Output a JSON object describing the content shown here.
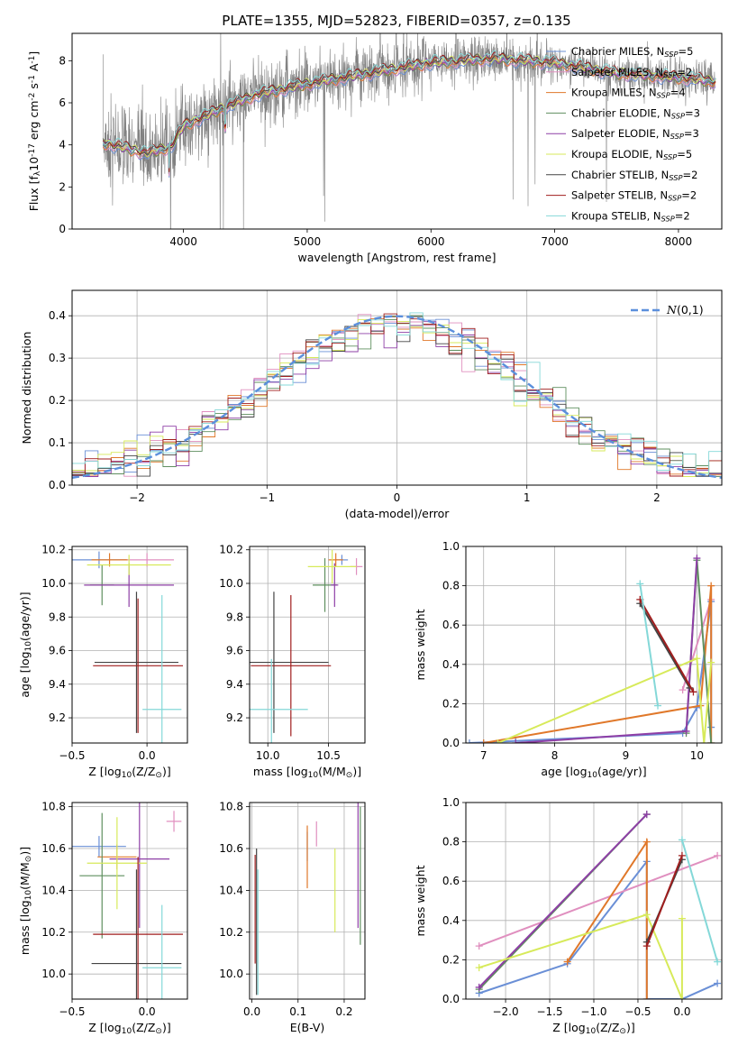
{
  "colors": {
    "Chabrier MILES": "#6a8fd6",
    "Salpeter MILES": "#e08fbf",
    "Kroupa MILES": "#e0782a",
    "Chabrier ELODIE": "#5f8f5f",
    "Salpeter ELODIE": "#8e3fa6",
    "Kroupa ELODIE": "#d7ea5a",
    "Chabrier STELIB": "#444444",
    "Salpeter STELIB": "#a01e1e",
    "Kroupa STELIB": "#84d8d8",
    "data": "#808080",
    "normal": "#5b8fdc"
  },
  "chart_data": [
    {
      "id": "spectrum",
      "type": "line",
      "title": "PLATE=1355, MJD=52823, FIBERID=0357, z=0.135",
      "xlabel": "wavelength [Angstrom, rest frame]",
      "ylabel": "Flux [f$_\\lambda$10$^{-17}$ erg cm$^{-2}$ s$^{-1}$ A$^{-1}$]",
      "xlim": [
        3100,
        8350
      ],
      "ylim": [
        0,
        9.3
      ],
      "xticks": [
        4000,
        5000,
        6000,
        7000,
        8000
      ],
      "yticks": [
        0,
        2,
        4,
        6,
        8
      ],
      "continuum": [
        [
          3350,
          4.1
        ],
        [
          3500,
          3.9
        ],
        [
          3700,
          3.6
        ],
        [
          3900,
          3.9
        ],
        [
          4000,
          4.9
        ],
        [
          4300,
          5.7
        ],
        [
          4600,
          6.4
        ],
        [
          5000,
          6.9
        ],
        [
          5500,
          7.4
        ],
        [
          6000,
          7.9
        ],
        [
          6500,
          8.1
        ],
        [
          7000,
          7.9
        ],
        [
          7500,
          7.4
        ],
        [
          8000,
          7.2
        ],
        [
          8300,
          7.0
        ]
      ],
      "legend": [
        {
          "label": "Chabrier MILES, N$_{SSP}$=5"
        },
        {
          "label": "Salpeter MILES, N$_{SSP}$=2"
        },
        {
          "label": "Kroupa MILES, N$_{SSP}$=4"
        },
        {
          "label": "Chabrier ELODIE, N$_{SSP}$=3"
        },
        {
          "label": "Salpeter ELODIE, N$_{SSP}$=3"
        },
        {
          "label": "Kroupa ELODIE, N$_{SSP}$=5"
        },
        {
          "label": "Chabrier STELIB, N$_{SSP}$=2"
        },
        {
          "label": "Salpeter STELIB, N$_{SSP}$=2"
        },
        {
          "label": "Kroupa STELIB, N$_{SSP}$=2"
        }
      ],
      "legend_position": "right"
    },
    {
      "id": "residuals",
      "type": "histogram",
      "xlabel": "(data-model)/error",
      "ylabel": "Normed distribution",
      "xlim": [
        -2.5,
        2.5
      ],
      "ylim": [
        0,
        0.46
      ],
      "xticks": [
        -2,
        -1,
        0,
        1,
        2
      ],
      "yticks": [
        0.0,
        0.1,
        0.2,
        0.3,
        0.4
      ],
      "curve_label": "$\\mathcal{N}(0,1)$",
      "legend_position": "top-right",
      "grid": true
    },
    {
      "id": "age_Z",
      "type": "errorbar",
      "xlabel": "Z [log$_{10}$(Z/Z$_\\odot$)]",
      "ylabel": "age  [log$_{10}$(age/yr)]",
      "xlim": [
        -0.5,
        0.27
      ],
      "ylim": [
        9.05,
        10.22
      ],
      "xticks": [
        -0.5,
        0.0
      ],
      "yticks": [
        9.2,
        9.4,
        9.6,
        9.8,
        10.0,
        10.2
      ],
      "points": [
        {
          "s": "Chabrier MILES",
          "x": -0.32,
          "y": 10.14,
          "xe": 0.18,
          "ye": 0.05
        },
        {
          "s": "Salpeter MILES",
          "x": 0.0,
          "y": 10.14,
          "xe": 0.18,
          "ye": 0.04
        },
        {
          "s": "Kroupa MILES",
          "x": -0.25,
          "y": 10.14,
          "xe": 0.12,
          "ye": 0.04
        },
        {
          "s": "Chabrier ELODIE",
          "x": -0.3,
          "y": 9.99,
          "xe": 0.08,
          "ye": 0.12
        },
        {
          "s": "Salpeter ELODIE",
          "x": -0.12,
          "y": 9.99,
          "xe": 0.3,
          "ye": 0.13
        },
        {
          "s": "Kroupa ELODIE",
          "x": -0.12,
          "y": 10.11,
          "xe": 0.28,
          "ye": 0.06
        },
        {
          "s": "Chabrier STELIB",
          "x": -0.07,
          "y": 9.53,
          "xe": 0.28,
          "ye": 0.42
        },
        {
          "s": "Salpeter STELIB",
          "x": -0.06,
          "y": 9.51,
          "xe": 0.3,
          "ye": 0.4
        },
        {
          "s": "Kroupa STELIB",
          "x": 0.1,
          "y": 9.25,
          "xe": 0.13,
          "ye": 0.68
        }
      ]
    },
    {
      "id": "age_mass",
      "type": "errorbar",
      "xlabel": "mass [log$_{10}$(M/M$_\\odot$)]",
      "xlim": [
        9.85,
        10.8
      ],
      "ylim": [
        9.05,
        10.22
      ],
      "xticks": [
        10.0,
        10.5
      ],
      "yticks": [
        9.2,
        9.4,
        9.6,
        9.8,
        10.0,
        10.2
      ],
      "points": [
        {
          "s": "Chabrier MILES",
          "x": 10.61,
          "y": 10.14,
          "xe": 0.05,
          "ye": 0.03
        },
        {
          "s": "Salpeter MILES",
          "x": 10.73,
          "y": 10.1,
          "xe": 0.05,
          "ye": 0.05
        },
        {
          "s": "Kroupa MILES",
          "x": 10.56,
          "y": 10.14,
          "xe": 0.06,
          "ye": 0.04
        },
        {
          "s": "Chabrier ELODIE",
          "x": 10.47,
          "y": 9.99,
          "xe": 0.1,
          "ye": 0.16
        },
        {
          "s": "Salpeter ELODIE",
          "x": 10.55,
          "y": 9.99,
          "xe": 0.03,
          "ye": 0.13
        },
        {
          "s": "Kroupa ELODIE",
          "x": 10.53,
          "y": 10.1,
          "xe": 0.2,
          "ye": 0.1
        },
        {
          "s": "Chabrier STELIB",
          "x": 10.05,
          "y": 9.53,
          "xe": 0.45,
          "ye": 0.42
        },
        {
          "s": "Salpeter STELIB",
          "x": 10.19,
          "y": 9.51,
          "xe": 0.33,
          "ye": 0.42
        },
        {
          "s": "Kroupa STELIB",
          "x": 10.03,
          "y": 9.25,
          "xe": 0.3,
          "ye": 0.3
        }
      ]
    },
    {
      "id": "weight_age",
      "type": "line",
      "xlabel": "age  [log$_{10}$(age/yr)]",
      "ylabel": "mass weight",
      "xlim": [
        6.75,
        10.35
      ],
      "ylim": [
        0.0,
        1.0
      ],
      "xticks": [
        7,
        8,
        9,
        10
      ],
      "yticks": [
        0.0,
        0.2,
        0.4,
        0.6,
        0.8,
        1.0
      ],
      "series": [
        {
          "s": "Chabrier MILES",
          "pts": [
            [
              6.8,
              0.0
            ],
            [
              7.45,
              0.01
            ],
            [
              9.8,
              0.05
            ],
            [
              10.0,
              0.18
            ],
            [
              10.2,
              0.72
            ],
            [
              10.2,
              0.08
            ]
          ]
        },
        {
          "s": "Salpeter MILES",
          "pts": [
            [
              9.8,
              0.27
            ],
            [
              10.2,
              0.73
            ]
          ]
        },
        {
          "s": "Kroupa MILES",
          "pts": [
            [
              7.0,
              0.0
            ],
            [
              10.05,
              0.19
            ],
            [
              10.2,
              0.8
            ],
            [
              10.2,
              0.0
            ]
          ]
        },
        {
          "s": "Chabrier ELODIE",
          "pts": [
            [
              9.85,
              0.05
            ],
            [
              10.0,
              0.93
            ],
            [
              10.2,
              0.0
            ]
          ]
        },
        {
          "s": "Salpeter ELODIE",
          "pts": [
            [
              7.45,
              0.0
            ],
            [
              9.85,
              0.06
            ],
            [
              10.0,
              0.94
            ]
          ]
        },
        {
          "s": "Kroupa ELODIE",
          "pts": [
            [
              7.2,
              0.0
            ],
            [
              10.0,
              0.43
            ],
            [
              10.1,
              0.0
            ],
            [
              10.2,
              0.41
            ]
          ]
        },
        {
          "s": "Chabrier STELIB",
          "pts": [
            [
              9.2,
              0.71
            ],
            [
              9.9,
              0.28
            ]
          ]
        },
        {
          "s": "Salpeter STELIB",
          "pts": [
            [
              9.2,
              0.73
            ],
            [
              9.95,
              0.26
            ]
          ]
        },
        {
          "s": "Kroupa STELIB",
          "pts": [
            [
              9.2,
              0.81
            ],
            [
              9.45,
              0.19
            ]
          ]
        }
      ]
    },
    {
      "id": "mass_Z",
      "type": "errorbar",
      "xlabel": "Z [log$_{10}$(Z/Z$_\\odot$)]",
      "ylabel": "mass [log$_{10}$(M/M$_\\odot$)]",
      "xlim": [
        -0.5,
        0.27
      ],
      "ylim": [
        9.88,
        10.82
      ],
      "xticks": [
        -0.5,
        0.0
      ],
      "yticks": [
        10.0,
        10.2,
        10.4,
        10.6,
        10.8
      ],
      "points": [
        {
          "s": "Chabrier MILES",
          "x": -0.32,
          "y": 10.61,
          "xe": 0.18,
          "ye": 0.05
        },
        {
          "s": "Salpeter MILES",
          "x": 0.18,
          "y": 10.73,
          "xe": 0.05,
          "ye": 0.05
        },
        {
          "s": "Kroupa MILES",
          "x": -0.2,
          "y": 10.56,
          "xe": 0.13,
          "ye": 0.06
        },
        {
          "s": "Chabrier ELODIE",
          "x": -0.3,
          "y": 10.47,
          "xe": 0.15,
          "ye": 0.3
        },
        {
          "s": "Salpeter ELODIE",
          "x": -0.05,
          "y": 10.55,
          "xe": 0.2,
          "ye": 0.33
        },
        {
          "s": "Kroupa ELODIE",
          "x": -0.2,
          "y": 10.53,
          "xe": 0.2,
          "ye": 0.22
        },
        {
          "s": "Chabrier STELIB",
          "x": -0.07,
          "y": 10.05,
          "xe": 0.3,
          "ye": 0.45
        },
        {
          "s": "Salpeter STELIB",
          "x": -0.06,
          "y": 10.19,
          "xe": 0.3,
          "ye": 0.37
        },
        {
          "s": "Kroupa STELIB",
          "x": 0.1,
          "y": 10.03,
          "xe": 0.13,
          "ye": 0.3
        }
      ]
    },
    {
      "id": "mass_EBV",
      "type": "errorbar",
      "xlabel": "E(B-V)",
      "xlim": [
        -0.005,
        0.245
      ],
      "ylim": [
        9.88,
        10.82
      ],
      "xticks": [
        0.0,
        0.1,
        0.2
      ],
      "yticks": [
        10.0,
        10.2,
        10.4,
        10.6,
        10.8
      ],
      "points": [
        {
          "s": "Chabrier MILES",
          "x": 0.12,
          "y": 10.61,
          "xe": 0,
          "ye": 0.07
        },
        {
          "s": "Salpeter MILES",
          "x": 0.14,
          "y": 10.67,
          "xe": 0,
          "ye": 0.06
        },
        {
          "s": "Kroupa MILES",
          "x": 0.12,
          "y": 10.56,
          "xe": 0,
          "ye": 0.15
        },
        {
          "s": "Chabrier ELODIE",
          "x": 0.235,
          "y": 10.47,
          "xe": 0,
          "ye": 0.33
        },
        {
          "s": "Salpeter ELODIE",
          "x": 0.23,
          "y": 10.57,
          "xe": 0,
          "ye": 0.35
        },
        {
          "s": "Kroupa ELODIE",
          "x": 0.18,
          "y": 10.4,
          "xe": 0,
          "ye": 0.2
        },
        {
          "s": "Chabrier STELIB",
          "x": 0.01,
          "y": 10.25,
          "xe": 0,
          "ye": 0.35
        },
        {
          "s": "Salpeter STELIB",
          "x": 0.007,
          "y": 10.31,
          "xe": 0,
          "ye": 0.26
        },
        {
          "s": "Kroupa STELIB",
          "x": 0.013,
          "y": 10.2,
          "xe": 0,
          "ye": 0.3
        }
      ]
    },
    {
      "id": "weight_Z",
      "type": "line",
      "xlabel": "Z [log$_{10}$(Z/Z$_\\odot$)]",
      "ylabel": "mass weight",
      "xlim": [
        -2.45,
        0.45
      ],
      "ylim": [
        0.0,
        1.0
      ],
      "xticks": [
        -2.0,
        -1.5,
        -1.0,
        -0.5,
        0.0
      ],
      "yticks": [
        0.0,
        0.2,
        0.4,
        0.6,
        0.8,
        1.0
      ],
      "series": [
        {
          "s": "Chabrier MILES",
          "pts": [
            [
              -2.3,
              0.03
            ],
            [
              -1.3,
              0.18
            ],
            [
              -0.4,
              0.7
            ],
            [
              -0.4,
              0.0
            ],
            [
              0.0,
              0.0
            ],
            [
              0.4,
              0.08
            ]
          ]
        },
        {
          "s": "Salpeter MILES",
          "pts": [
            [
              -2.3,
              0.27
            ],
            [
              0.4,
              0.73
            ]
          ]
        },
        {
          "s": "Kroupa MILES",
          "pts": [
            [
              -1.3,
              0.19
            ],
            [
              -0.4,
              0.8
            ],
            [
              -0.4,
              0.0
            ]
          ]
        },
        {
          "s": "Chabrier ELODIE",
          "pts": [
            [
              -2.3,
              0.05
            ],
            [
              -0.4,
              0.94
            ]
          ]
        },
        {
          "s": "Salpeter ELODIE",
          "pts": [
            [
              -2.3,
              0.06
            ],
            [
              -0.4,
              0.94
            ]
          ]
        },
        {
          "s": "Kroupa ELODIE",
          "pts": [
            [
              -2.3,
              0.16
            ],
            [
              -0.4,
              0.43
            ],
            [
              0.0,
              0.0
            ],
            [
              0.0,
              0.41
            ]
          ]
        },
        {
          "s": "Chabrier STELIB",
          "pts": [
            [
              -0.4,
              0.29
            ],
            [
              0.0,
              0.71
            ]
          ]
        },
        {
          "s": "Salpeter STELIB",
          "pts": [
            [
              -0.4,
              0.27
            ],
            [
              0.0,
              0.73
            ]
          ]
        },
        {
          "s": "Kroupa STELIB",
          "pts": [
            [
              0.0,
              0.81
            ],
            [
              0.4,
              0.19
            ]
          ]
        }
      ]
    }
  ]
}
